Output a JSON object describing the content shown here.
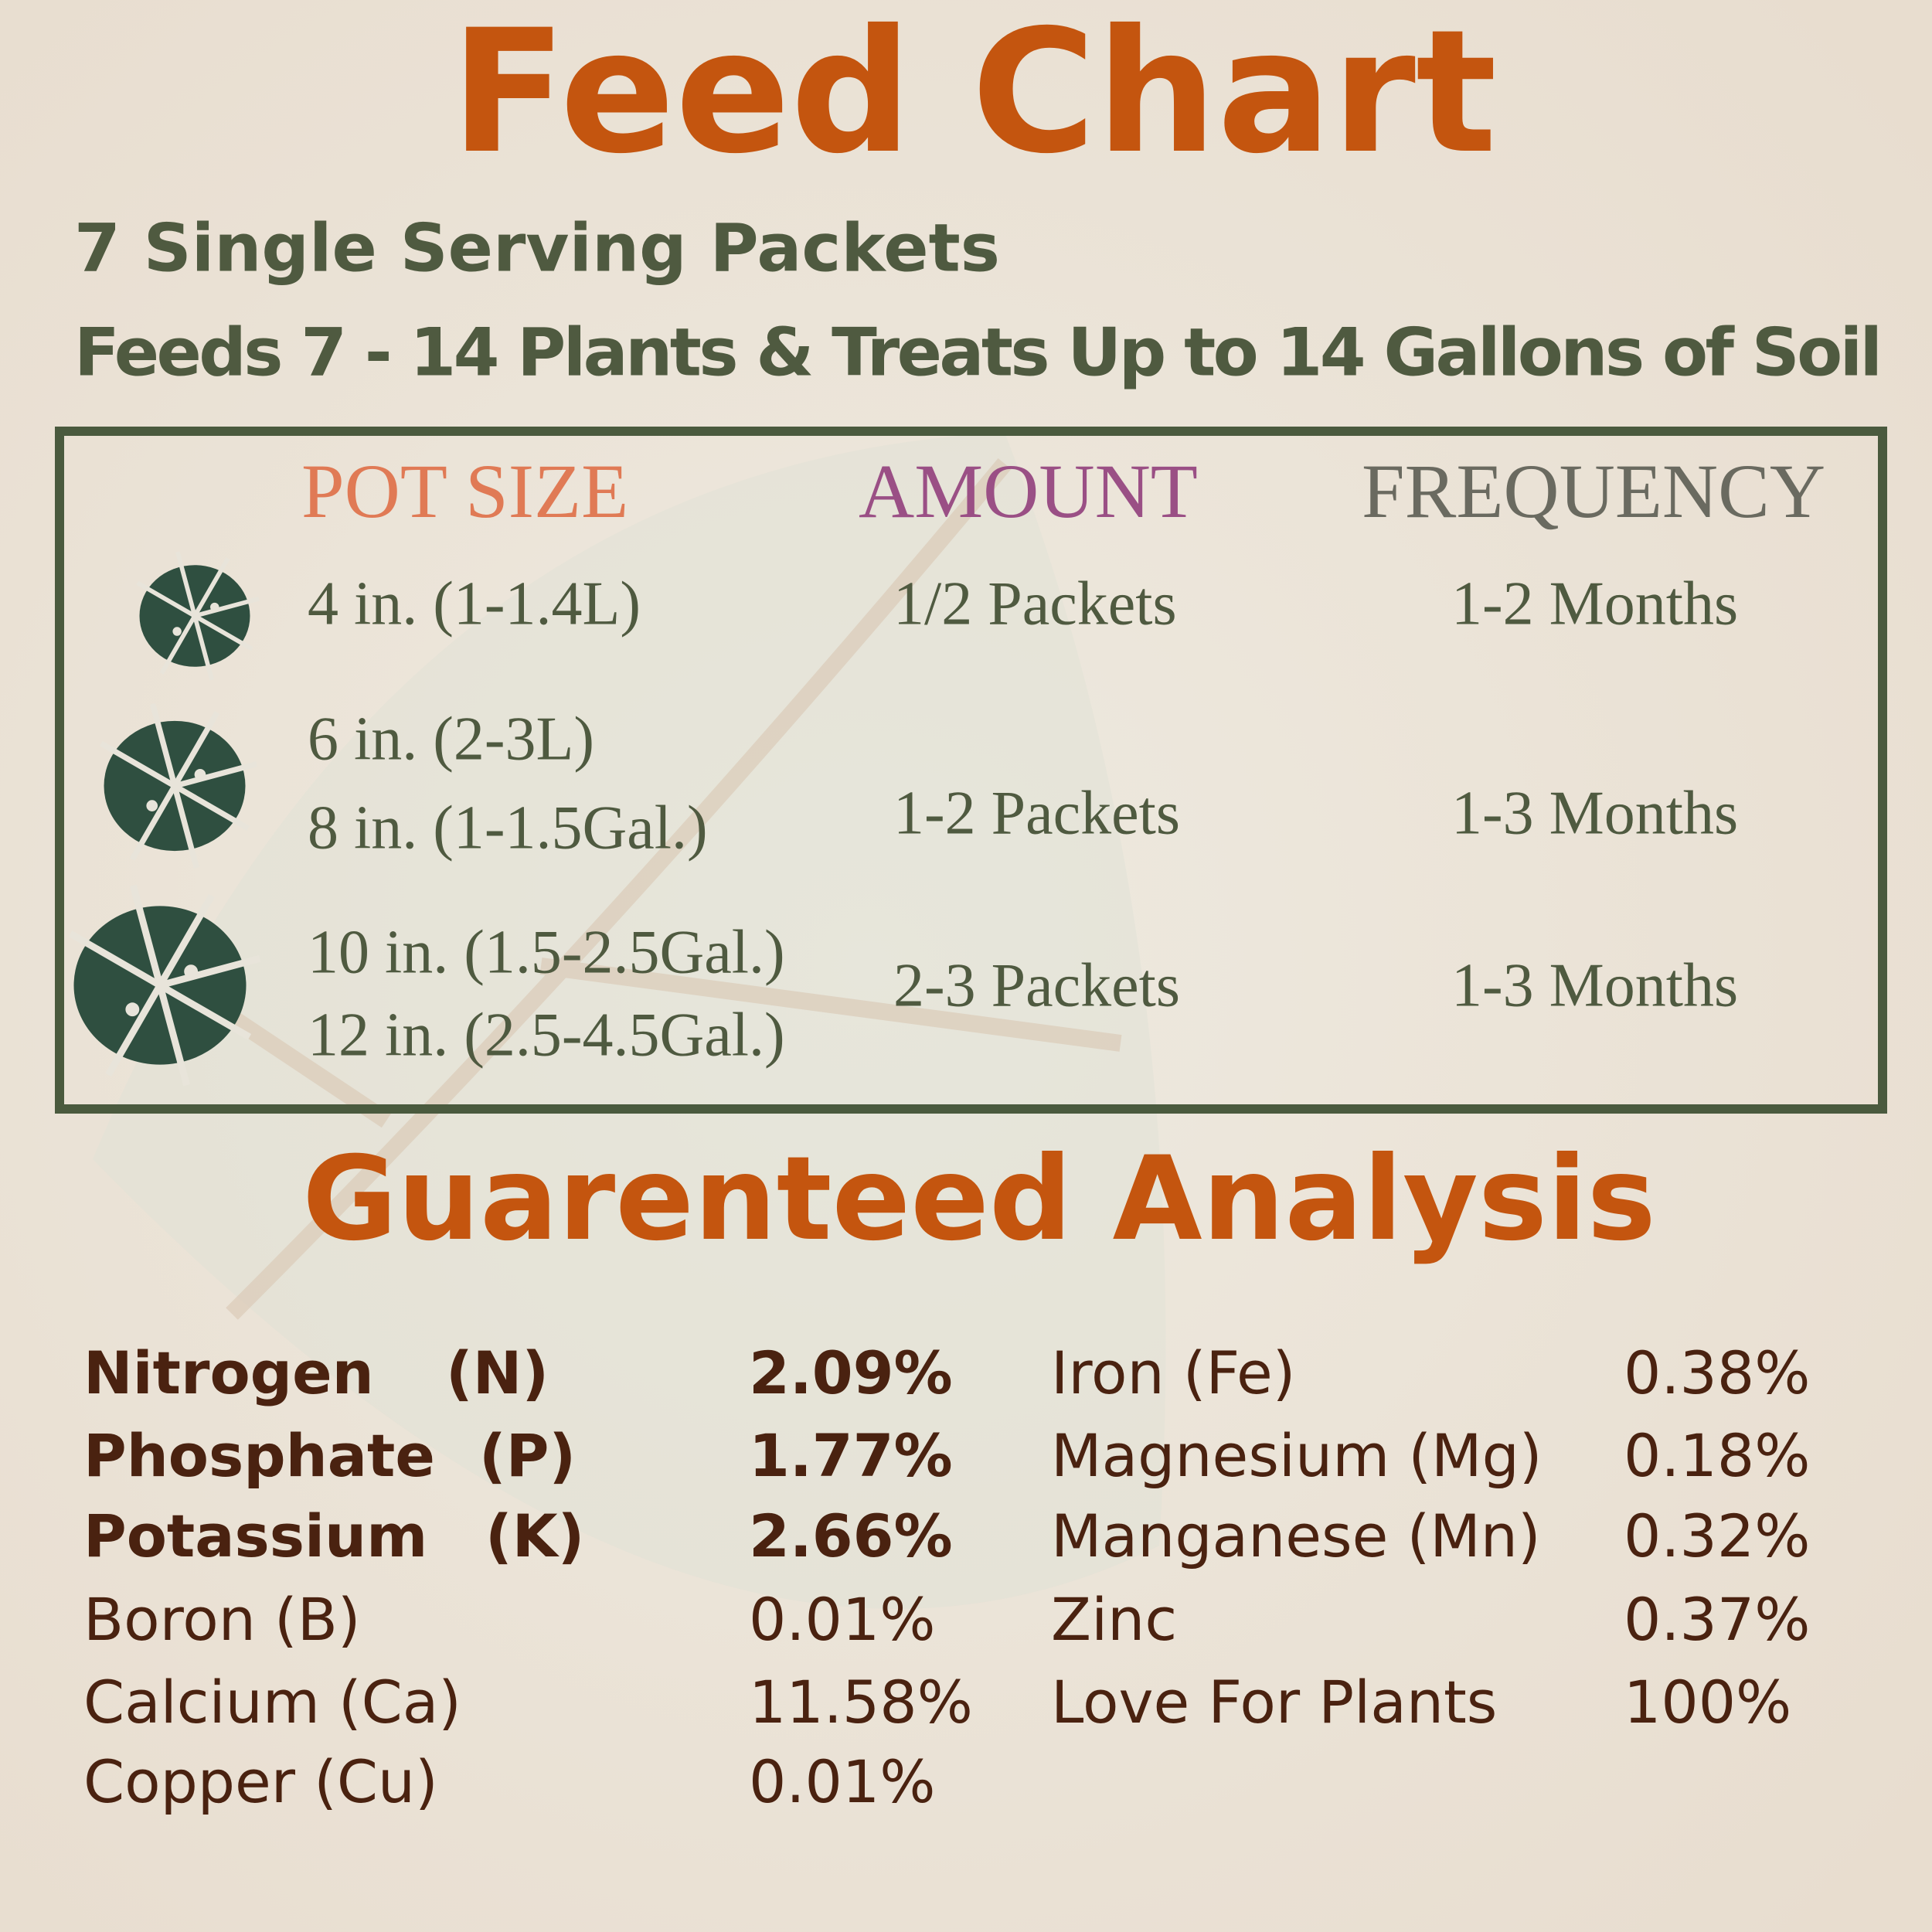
{
  "header": {
    "title": "Feed Chart",
    "subtitle": [
      "7 Single Serving Packets",
      "Feeds 7 - 14 Plants & Treats Up to 14 Gallons of Soil"
    ]
  },
  "table": {
    "headers": [
      "POT SIZE",
      "AMOUNT",
      "FREQUENCY"
    ],
    "rows": [
      {
        "pot_size": [
          "4 in. (1-1.4L)"
        ],
        "amount": "1/2 Packets",
        "frequency": "1-2 Months"
      },
      {
        "pot_size": [
          "6 in. (2-3L)",
          "8 in. (1-1.5Gal.)"
        ],
        "amount": "1-2 Packets",
        "frequency": "1-3 Months"
      },
      {
        "pot_size": [
          "10 in. (1.5-2.5Gal.)",
          "12 in. (2.5-4.5Gal.)"
        ],
        "amount": "2-3 Packets",
        "frequency": "1-3 Months"
      }
    ]
  },
  "analysis": {
    "title": "Guarenteed Analysis",
    "left": [
      {
        "name": "Nitrogen",
        "symbol": "(N)",
        "value": "2.09%"
      },
      {
        "name": "Phosphate",
        "symbol": "(P)",
        "value": "1.77%"
      },
      {
        "name": "Potassium",
        "symbol": "(K)",
        "value": "2.66%"
      },
      {
        "name": "Boron (B)",
        "value": "0.01%"
      },
      {
        "name": "Calcium (Ca)",
        "value": "11.58%"
      },
      {
        "name": "Copper (Cu)",
        "value": "0.01%"
      }
    ],
    "right": [
      {
        "name": "Iron (Fe)",
        "value": "0.38%"
      },
      {
        "name": "Magnesium (Mg)",
        "value": "0.18%"
      },
      {
        "name": "Manganese (Mn)",
        "value": "0.32%"
      },
      {
        "name": "Zinc",
        "value": "0.37%"
      },
      {
        "name": "Love For Plants",
        "value": "100%"
      }
    ]
  }
}
